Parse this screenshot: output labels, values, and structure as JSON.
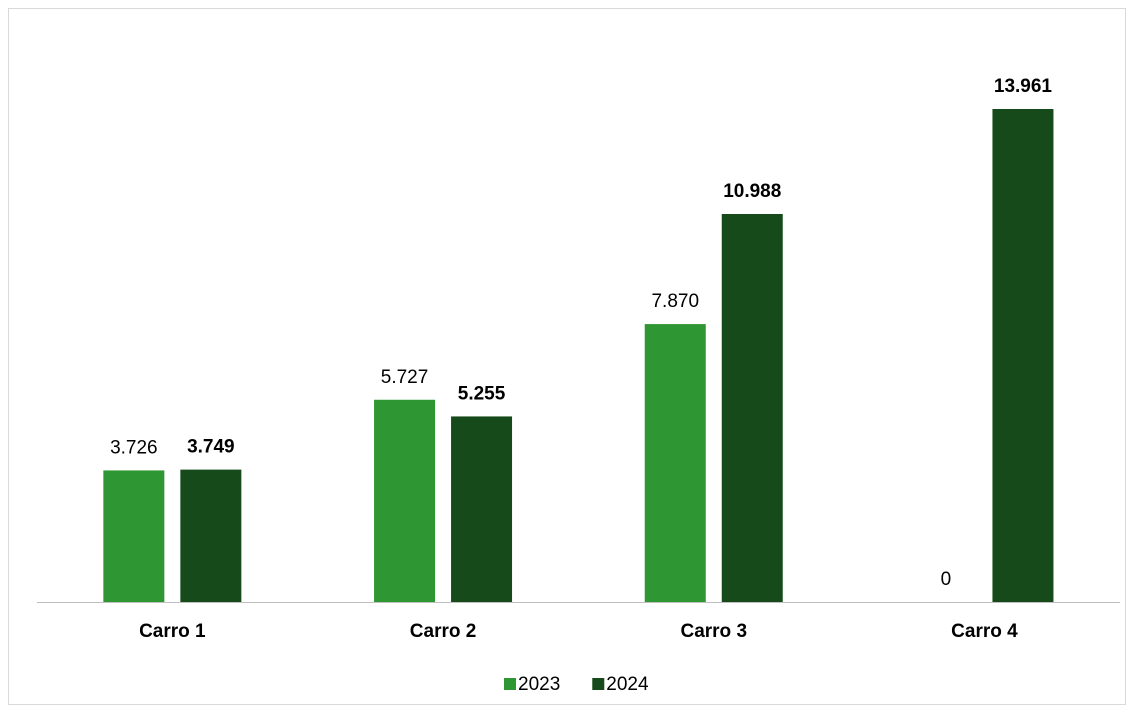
{
  "chart_data": {
    "type": "bar",
    "categories": [
      "Carro 1",
      "Carro 2",
      "Carro 3",
      "Carro 4"
    ],
    "series": [
      {
        "name": "2023",
        "color": "#2e9632",
        "values": [
          3726,
          5727,
          7870,
          0
        ],
        "value_labels": [
          "3.726",
          "5.727",
          "7.870",
          "0"
        ]
      },
      {
        "name": "2024",
        "color": "#174a1a",
        "values": [
          3749,
          5255,
          10988,
          13961
        ],
        "value_labels": [
          "3.749",
          "5.255",
          "10.988",
          "13.961"
        ]
      }
    ],
    "legend": "bottom"
  }
}
